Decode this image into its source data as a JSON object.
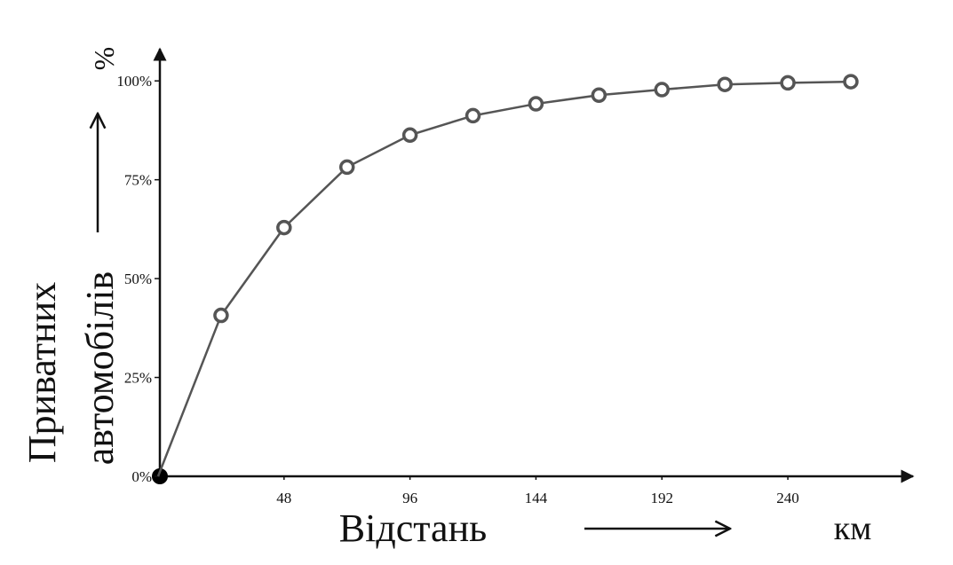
{
  "chart_data": {
    "type": "line",
    "xlabel": "Відстань",
    "xunit": "км",
    "ylabel": [
      "Приватних",
      "автомобілів"
    ],
    "yunit": "%",
    "x": [
      0,
      24,
      48,
      72,
      96,
      120,
      144,
      168,
      192,
      216,
      240,
      264
    ],
    "series": [
      {
        "color": "#555555",
        "values": [
          0,
          40.7,
          62.9,
          78.2,
          86.3,
          91.2,
          94.2,
          96.4,
          97.8,
          99.1,
          99.5,
          99.8
        ]
      }
    ],
    "xlim": [
      0,
      285
    ],
    "ylim": [
      0,
      107
    ],
    "xticks": [
      48,
      96,
      144,
      192,
      240
    ],
    "yticks": [
      {
        "value": 0,
        "label": "0%"
      },
      {
        "value": 25,
        "label": "25%"
      },
      {
        "value": 50,
        "label": "50%"
      },
      {
        "value": 75,
        "label": "75%"
      },
      {
        "value": 100,
        "label": "100%"
      }
    ]
  }
}
